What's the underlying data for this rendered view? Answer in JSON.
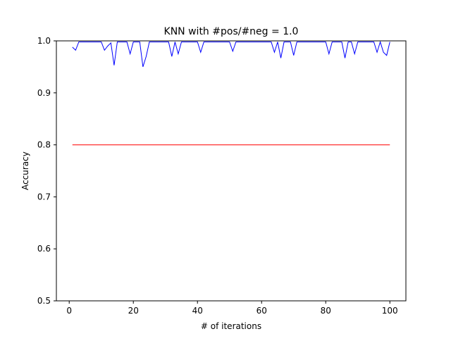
{
  "chart_data": {
    "type": "line",
    "title": "KNN with #pos/#neg = 1.0",
    "xlabel": "# of iterations",
    "ylabel": "Accuracy",
    "xlim": [
      -4,
      105
    ],
    "ylim": [
      0.5,
      1.0
    ],
    "xticks": [
      0,
      20,
      40,
      60,
      80,
      100
    ],
    "xtick_labels": [
      "0",
      "20",
      "40",
      "60",
      "80",
      "100"
    ],
    "yticks": [
      0.5,
      0.6,
      0.7,
      0.8,
      0.9,
      1.0
    ],
    "ytick_labels": [
      "0.5",
      "0.6",
      "0.7",
      "0.8",
      "0.9",
      "1.0"
    ],
    "grid": false,
    "legend": "none",
    "series": [
      {
        "color": "#0000ff",
        "x": [
          1,
          2,
          3,
          4,
          5,
          6,
          7,
          8,
          9,
          10,
          11,
          12,
          13,
          14,
          15,
          16,
          17,
          18,
          19,
          20,
          21,
          22,
          23,
          24,
          25,
          26,
          27,
          28,
          29,
          30,
          31,
          32,
          33,
          34,
          35,
          36,
          37,
          38,
          39,
          40,
          41,
          42,
          43,
          44,
          45,
          46,
          47,
          48,
          49,
          50,
          51,
          52,
          53,
          54,
          55,
          56,
          57,
          58,
          59,
          60,
          61,
          62,
          63,
          64,
          65,
          66,
          67,
          68,
          69,
          70,
          71,
          72,
          73,
          74,
          75,
          76,
          77,
          78,
          79,
          80,
          81,
          82,
          83,
          84,
          85,
          86,
          87,
          88,
          89,
          90,
          91,
          92,
          93,
          94,
          95,
          96,
          97,
          98,
          99,
          100
        ],
        "values": [
          0.988,
          0.982,
          0.998,
          0.998,
          0.998,
          0.998,
          0.998,
          0.998,
          0.998,
          0.998,
          0.982,
          0.99,
          0.996,
          0.953,
          0.998,
          0.998,
          0.998,
          0.998,
          0.975,
          0.998,
          0.998,
          0.998,
          0.95,
          0.97,
          0.998,
          0.998,
          0.998,
          0.998,
          0.998,
          0.998,
          0.998,
          0.97,
          0.998,
          0.975,
          0.998,
          0.998,
          0.998,
          0.998,
          0.998,
          0.998,
          0.978,
          0.998,
          0.998,
          0.998,
          0.998,
          0.998,
          0.998,
          0.998,
          0.998,
          0.998,
          0.98,
          0.998,
          0.998,
          0.998,
          0.998,
          0.998,
          0.998,
          0.998,
          0.998,
          0.998,
          0.998,
          0.998,
          0.998,
          0.978,
          0.998,
          0.967,
          0.998,
          0.998,
          0.998,
          0.972,
          0.998,
          0.998,
          0.998,
          0.998,
          0.998,
          0.998,
          0.998,
          0.998,
          0.998,
          0.998,
          0.975,
          0.998,
          0.998,
          0.998,
          0.998,
          0.967,
          0.998,
          0.998,
          0.975,
          0.998,
          0.998,
          0.998,
          0.998,
          0.998,
          0.998,
          0.978,
          0.998,
          0.978,
          0.972,
          0.998
        ]
      },
      {
        "color": "#ff0000",
        "x": [
          1,
          100
        ],
        "values": [
          0.8,
          0.8
        ]
      }
    ]
  }
}
